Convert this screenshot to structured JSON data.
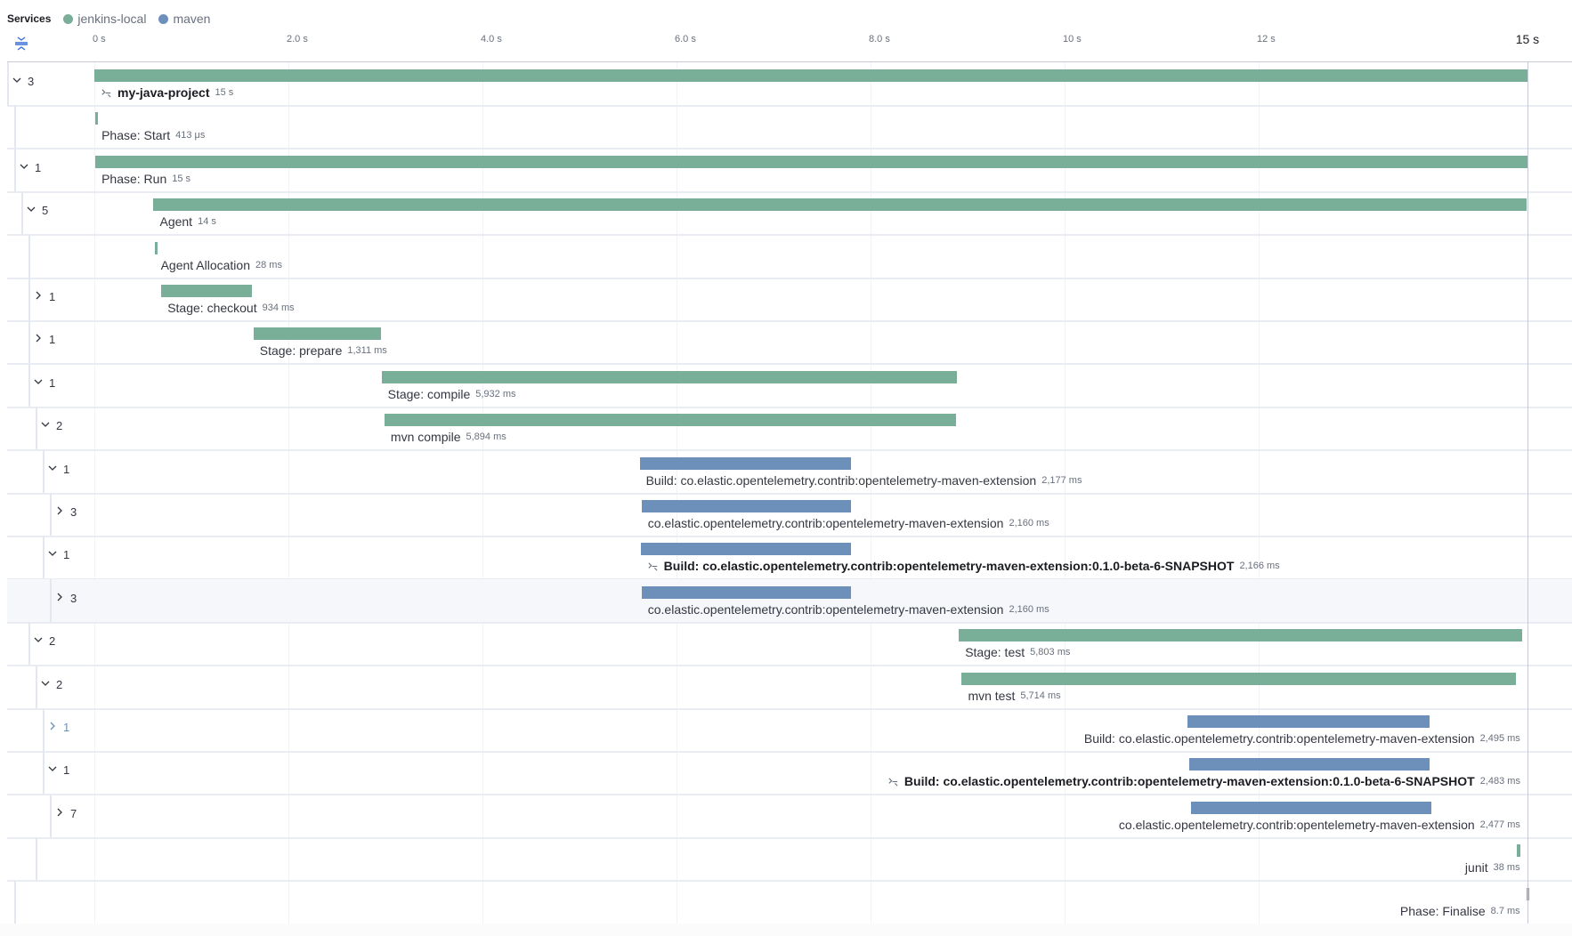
{
  "header": {
    "services_label": "Services",
    "services": [
      {
        "name": "jenkins-local",
        "color": "#79ae98"
      },
      {
        "name": "maven",
        "color": "#6d90bb"
      }
    ]
  },
  "toolbar": {
    "collapse_icon": "collapse-all-icon"
  },
  "axis": {
    "unit": "s",
    "ticks": [
      {
        "value": 0,
        "label": "0 s"
      },
      {
        "value": 2,
        "label": "2.0 s"
      },
      {
        "value": 4,
        "label": "4.0 s"
      },
      {
        "value": 6,
        "label": "6.0 s"
      },
      {
        "value": 8,
        "label": "8.0 s"
      },
      {
        "value": 10,
        "label": "10 s"
      },
      {
        "value": 12,
        "label": "12 s"
      }
    ],
    "end": {
      "value": 14.77,
      "label": "15 s"
    }
  },
  "rows": [
    {
      "depth": 0,
      "expanded": true,
      "count": "3",
      "name": "my-java-project",
      "duration": "15 s",
      "service": "jenkins-local",
      "start": 0,
      "length": 14.77,
      "bold": true,
      "icon": "span-link-icon"
    },
    {
      "depth": 1,
      "name": "Phase: Start",
      "duration": "413 μs",
      "service": "jenkins-local",
      "start": 0.01,
      "length": 0.0004
    },
    {
      "depth": 1,
      "expanded": true,
      "count": "1",
      "name": "Phase: Run",
      "duration": "15 s",
      "service": "jenkins-local",
      "start": 0.01,
      "length": 14.76
    },
    {
      "depth": 2,
      "expanded": true,
      "count": "5",
      "name": "Agent",
      "duration": "14 s",
      "service": "jenkins-local",
      "start": 0.61,
      "length": 14.15
    },
    {
      "depth": 3,
      "name": "Agent Allocation",
      "duration": "28 ms",
      "service": "jenkins-local",
      "start": 0.62,
      "length": 0.028
    },
    {
      "depth": 3,
      "expanded": false,
      "count": "1",
      "name": "Stage: checkout",
      "duration": "934 ms",
      "service": "jenkins-local",
      "start": 0.69,
      "length": 0.934
    },
    {
      "depth": 3,
      "expanded": false,
      "count": "1",
      "name": "Stage: prepare",
      "duration": "1,311 ms",
      "service": "jenkins-local",
      "start": 1.64,
      "length": 1.311
    },
    {
      "depth": 3,
      "expanded": true,
      "count": "1",
      "name": "Stage: compile",
      "duration": "5,932 ms",
      "service": "jenkins-local",
      "start": 2.96,
      "length": 5.932
    },
    {
      "depth": 4,
      "expanded": true,
      "count": "2",
      "name": "mvn compile",
      "duration": "5,894 ms",
      "service": "jenkins-local",
      "start": 2.99,
      "length": 5.894
    },
    {
      "depth": 5,
      "expanded": true,
      "count": "1",
      "name": "Build: co.elastic.opentelemetry.contrib:opentelemetry-maven-extension",
      "duration": "2,177 ms",
      "service": "maven",
      "start": 5.62,
      "length": 2.177
    },
    {
      "depth": 6,
      "expanded": false,
      "count": "3",
      "name": "co.elastic.opentelemetry.contrib:opentelemetry-maven-extension",
      "duration": "2,160 ms",
      "service": "maven",
      "start": 5.64,
      "length": 2.16
    },
    {
      "depth": 5,
      "expanded": true,
      "count": "1",
      "name": "Build: co.elastic.opentelemetry.contrib:opentelemetry-maven-extension:0.1.0-beta-6-SNAPSHOT",
      "duration": "2,166 ms",
      "service": "maven",
      "start": 5.63,
      "length": 2.166,
      "bold": true,
      "icon": "span-link-icon"
    },
    {
      "depth": 6,
      "expanded": false,
      "count": "3",
      "name": "co.elastic.opentelemetry.contrib:opentelemetry-maven-extension",
      "duration": "2,160 ms",
      "service": "maven",
      "start": 5.64,
      "length": 2.16,
      "highlighted": true
    },
    {
      "depth": 3,
      "expanded": true,
      "count": "2",
      "name": "Stage: test",
      "duration": "5,803 ms",
      "service": "jenkins-local",
      "start": 8.91,
      "length": 5.803
    },
    {
      "depth": 4,
      "expanded": true,
      "count": "2",
      "name": "mvn test",
      "duration": "5,714 ms",
      "service": "jenkins-local",
      "start": 8.94,
      "length": 5.714
    },
    {
      "depth": 5,
      "expanded": false,
      "count": "1",
      "name": "Build: co.elastic.opentelemetry.contrib:opentelemetry-maven-extension",
      "duration": "2,495 ms",
      "service": "maven",
      "start": 11.27,
      "length": 2.495,
      "chevron_color": "#6d90bb"
    },
    {
      "depth": 5,
      "expanded": true,
      "count": "1",
      "name": "Build: co.elastic.opentelemetry.contrib:opentelemetry-maven-extension:0.1.0-beta-6-SNAPSHOT",
      "duration": "2,483 ms",
      "service": "maven",
      "start": 11.28,
      "length": 2.483,
      "bold": true,
      "icon": "span-link-icon"
    },
    {
      "depth": 6,
      "expanded": false,
      "count": "7",
      "name": "co.elastic.opentelemetry.contrib:opentelemetry-maven-extension",
      "duration": "2,477 ms",
      "service": "maven",
      "start": 11.3,
      "length": 2.477
    },
    {
      "depth": 4,
      "name": "junit",
      "duration": "38 ms",
      "service": "jenkins-local",
      "start": 14.66,
      "length": 0.038
    },
    {
      "depth": 1,
      "name": "Phase: Finalise",
      "duration": "8.7 ms",
      "service": "jenkins-local",
      "start": 14.76,
      "length": 0.0087
    }
  ]
}
